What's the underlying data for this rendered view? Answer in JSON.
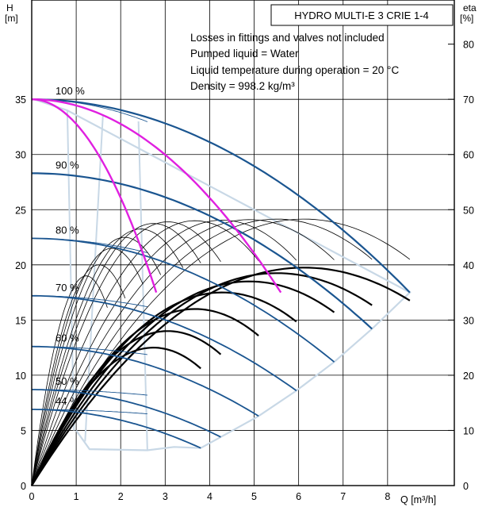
{
  "chart_data": {
    "type": "line",
    "title": "HYDRO MULTI-E 3 CRIE 1-4",
    "notes": [
      "Losses in fittings and valves not included",
      "Pumped liquid = Water",
      "Liquid temperature during operation = 20 °C",
      "Density = 998.2 kg/m³"
    ],
    "y_left_label": [
      "H",
      "[m]"
    ],
    "y_right_label": [
      "eta",
      "[%]"
    ],
    "x_label": "Q [m³/h]",
    "xlim": [
      0,
      9.5
    ],
    "ylim": [
      0,
      44
    ],
    "eta_lim": [
      0,
      88
    ],
    "x_ticks": [
      0,
      1,
      2,
      3,
      4,
      5,
      6,
      7,
      8
    ],
    "y_ticks": [
      0,
      5,
      10,
      15,
      20,
      25,
      30,
      35
    ],
    "eta_ticks": [
      0,
      10,
      20,
      30,
      40,
      50,
      60,
      70,
      80
    ],
    "speed_labels": [
      {
        "text": "100 %",
        "h": 35
      },
      {
        "text": "90 %",
        "h": 28.3
      },
      {
        "text": "80 %",
        "h": 22.4
      },
      {
        "text": "70 %",
        "h": 17.2
      },
      {
        "text": "60 %",
        "h": 12.6
      },
      {
        "text": "50 %",
        "h": 8.7
      },
      {
        "text": "44 %",
        "h": 6.9
      }
    ],
    "head_curves": [
      {
        "speed": 100,
        "h0": 35,
        "qmax": 8.5,
        "hend": 17.5,
        "color": "#1a5590"
      },
      {
        "speed": 90,
        "h0": 28.3,
        "qmax": 7.65,
        "hend": 14.2,
        "color": "#1a5590"
      },
      {
        "speed": 80,
        "h0": 22.4,
        "qmax": 6.8,
        "hend": 11.2,
        "color": "#1a5590"
      },
      {
        "speed": 70,
        "h0": 17.2,
        "qmax": 5.95,
        "hend": 8.6,
        "color": "#1a5590"
      },
      {
        "speed": 60,
        "h0": 12.6,
        "qmax": 5.1,
        "hend": 6.3,
        "color": "#1a5590"
      },
      {
        "speed": 50,
        "h0": 8.7,
        "qmax": 4.25,
        "hend": 4.4,
        "color": "#1a5590"
      },
      {
        "speed": 44,
        "h0": 6.9,
        "qmax": 3.8,
        "hend": 3.4,
        "color": "#1a5590"
      }
    ],
    "eta_curves": [
      {
        "qmax": 8.5,
        "peak": 39.5,
        "bold": true
      },
      {
        "qmax": 7.65,
        "peak": 38.5,
        "bold": true
      },
      {
        "qmax": 6.8,
        "peak": 37,
        "bold": true
      },
      {
        "qmax": 5.95,
        "peak": 35,
        "bold": true
      },
      {
        "qmax": 5.1,
        "peak": 32,
        "bold": true
      },
      {
        "qmax": 4.25,
        "peak": 28,
        "bold": true
      },
      {
        "qmax": 3.8,
        "peak": 25,
        "bold": true
      },
      {
        "qmax": 8.5,
        "peak": 48.3,
        "bold": false
      },
      {
        "qmax": 7.65,
        "peak": 48.3,
        "bold": false
      },
      {
        "qmax": 6.8,
        "peak": 48.2,
        "bold": false
      },
      {
        "qmax": 5.95,
        "peak": 48.1,
        "bold": false
      },
      {
        "qmax": 5.1,
        "peak": 48,
        "bold": false
      },
      {
        "qmax": 4.25,
        "peak": 47.8,
        "bold": false
      },
      {
        "qmax": 3.8,
        "peak": 47.5,
        "bold": false
      },
      {
        "qmax": 3.4,
        "peak": 46.5,
        "bold": false
      },
      {
        "qmax": 2.9,
        "peak": 45,
        "bold": false
      },
      {
        "qmax": 2.5,
        "peak": 43,
        "bold": false
      },
      {
        "qmax": 2.1,
        "peak": 40,
        "bold": false
      },
      {
        "qmax": 1.7,
        "peak": 38,
        "bold": false
      }
    ],
    "magenta_curves": [
      {
        "q_start": 0,
        "h_start": 35,
        "q_end": 5.6,
        "h_end": 17.5,
        "color": "#e020e0"
      },
      {
        "q_start": 0,
        "h_start": 35,
        "q_end": 2.8,
        "h_end": 17.5,
        "color": "#e020e0"
      }
    ],
    "envelope_color": "#c8d8e6",
    "grid": true
  }
}
